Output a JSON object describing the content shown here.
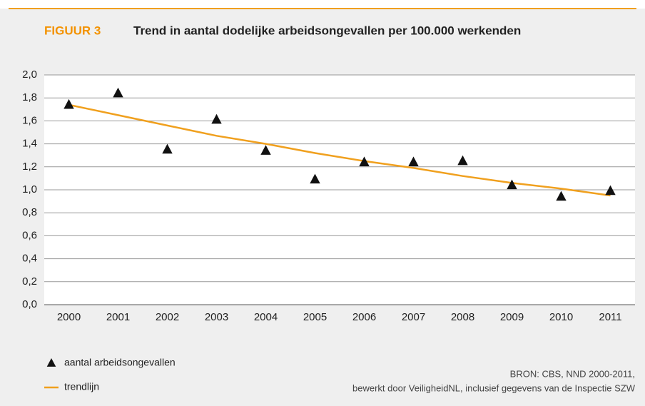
{
  "chart_data": {
    "type": "line",
    "figure_label": "FIGUUR 3",
    "title": "Trend in aantal dodelijke arbeidsongevallen per 100.000 werkenden",
    "categories": [
      "2000",
      "2001",
      "2002",
      "2003",
      "2004",
      "2005",
      "2006",
      "2007",
      "2008",
      "2009",
      "2010",
      "2011"
    ],
    "series": [
      {
        "name": "aantal arbeidsongevallen",
        "color": "#111111",
        "style": "markers",
        "values": [
          1.74,
          1.84,
          1.35,
          1.61,
          1.34,
          1.09,
          1.24,
          1.24,
          1.25,
          1.04,
          0.94,
          0.99
        ]
      },
      {
        "name": "trendlijn",
        "color": "#f0a01e",
        "style": "line",
        "values": [
          1.74,
          1.65,
          1.56,
          1.47,
          1.4,
          1.32,
          1.25,
          1.19,
          1.12,
          1.06,
          1.01,
          0.95
        ]
      }
    ],
    "ylim": [
      0,
      2
    ],
    "yticks": [
      {
        "value": 0,
        "label": "0,0"
      },
      {
        "value": 0.2,
        "label": "0,2"
      },
      {
        "value": 0.4,
        "label": "0,4"
      },
      {
        "value": 0.6,
        "label": "0,6"
      },
      {
        "value": 0.8,
        "label": "0,8"
      },
      {
        "value": 1,
        "label": "1,0"
      },
      {
        "value": 1.2,
        "label": "1,2"
      },
      {
        "value": 1.4,
        "label": "1,4"
      },
      {
        "value": 1.6,
        "label": "1,6"
      },
      {
        "value": 1.8,
        "label": "1,8"
      },
      {
        "value": 2,
        "label": "2,0"
      }
    ],
    "grid": true,
    "source": [
      "BRON: CBS, NND 2000-2011,",
      "bewerkt door VeiligheidNL, inclusief gegevens van de Inspectie SZW"
    ]
  }
}
